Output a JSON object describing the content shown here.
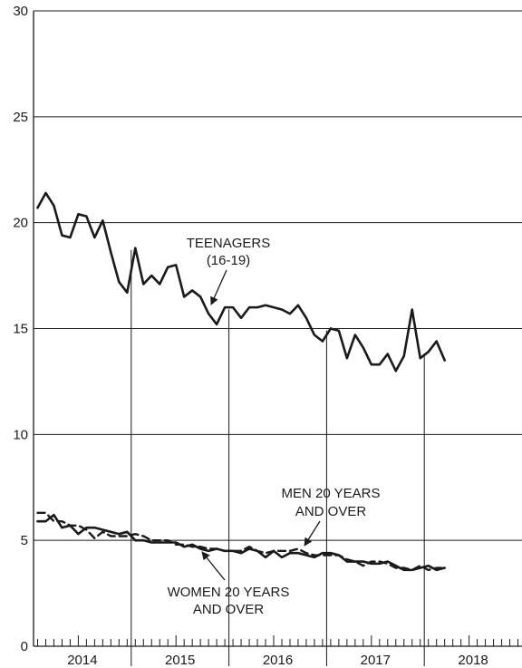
{
  "chart_data": {
    "type": "line",
    "title": "",
    "xlabel": "",
    "ylabel": "",
    "ylim": [
      0,
      30
    ],
    "yticks": [
      "0",
      "5",
      "10",
      "15",
      "20",
      "25",
      "30"
    ],
    "x_start": "2014-01",
    "x_end": "2018-12",
    "year_labels": [
      "2014",
      "2015",
      "2016",
      "2017",
      "2018"
    ],
    "grid": "horizontal",
    "series": [
      {
        "key": "teen",
        "style": "solid",
        "values": [
          20.7,
          21.4,
          20.8,
          19.4,
          19.3,
          20.4,
          20.3,
          19.3,
          20.1,
          18.6,
          17.2,
          16.7,
          18.8,
          17.1,
          17.5,
          17.1,
          17.9,
          18.0,
          16.5,
          16.8,
          16.5,
          15.7,
          15.2,
          16.0,
          16.0,
          15.5,
          16.0,
          16.0,
          16.1,
          16.0,
          15.9,
          15.7,
          16.1,
          15.5,
          14.7,
          14.4,
          15.0,
          14.9,
          13.6,
          14.7,
          14.1,
          13.3,
          13.3,
          13.8,
          13.0,
          13.7,
          15.9,
          13.6,
          13.9,
          14.4,
          13.5
        ]
      },
      {
        "key": "men",
        "style": "dashed",
        "values": [
          6.3,
          6.3,
          5.9,
          5.9,
          5.7,
          5.7,
          5.5,
          5.1,
          5.4,
          5.2,
          5.2,
          5.2,
          5.3,
          5.2,
          5.0,
          5.0,
          5.0,
          4.8,
          4.8,
          4.7,
          4.7,
          4.6,
          4.6,
          4.5,
          4.5,
          4.5,
          4.7,
          4.5,
          4.4,
          4.5,
          4.5,
          4.5,
          4.6,
          4.4,
          4.3,
          4.3,
          4.3,
          4.3,
          4.1,
          4.0,
          3.8,
          4.0,
          4.0,
          3.9,
          3.7,
          3.7,
          3.6,
          3.8,
          3.6,
          3.7,
          3.7
        ]
      },
      {
        "key": "women",
        "style": "solid",
        "values": [
          5.9,
          5.9,
          6.2,
          5.6,
          5.7,
          5.3,
          5.6,
          5.6,
          5.5,
          5.4,
          5.3,
          5.4,
          5.0,
          5.0,
          4.9,
          4.9,
          4.9,
          4.9,
          4.7,
          4.8,
          4.6,
          4.5,
          4.6,
          4.5,
          4.5,
          4.4,
          4.6,
          4.5,
          4.2,
          4.5,
          4.2,
          4.4,
          4.4,
          4.3,
          4.2,
          4.4,
          4.4,
          4.3,
          4.0,
          4.0,
          4.0,
          3.9,
          3.9,
          4.0,
          3.8,
          3.6,
          3.6,
          3.7,
          3.8,
          3.6,
          3.7
        ]
      }
    ],
    "annotations": {
      "teen_line1": "TEENAGERS",
      "teen_line2": "(16-19)",
      "men_line1": "MEN 20 YEARS",
      "men_line2": "AND OVER",
      "women_line1": "WOMEN 20 YEARS",
      "women_line2": "AND OVER"
    }
  }
}
